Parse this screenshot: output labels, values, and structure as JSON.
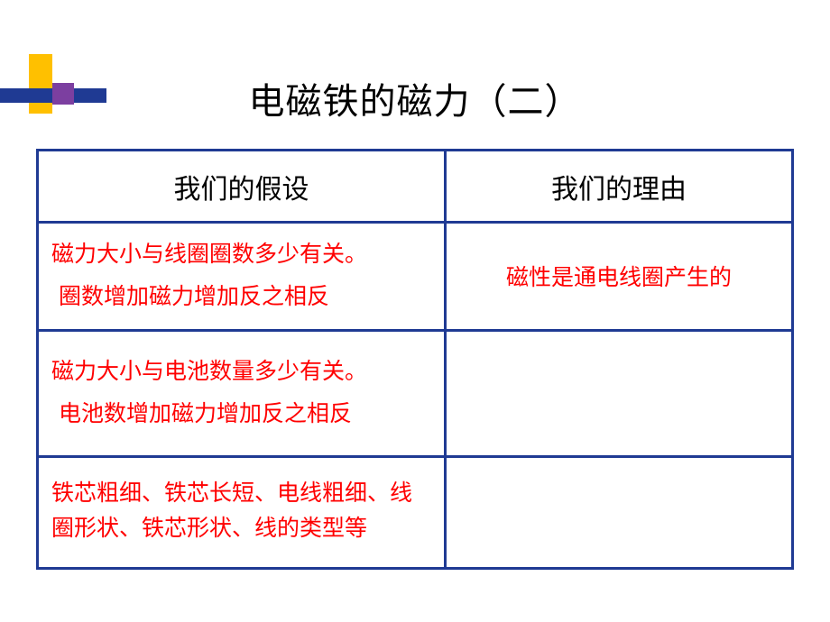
{
  "title": "电磁铁的磁力（二）",
  "colors": {
    "border": "#1f3a93",
    "text_red": "#ff0000",
    "deco_yellow": "#ffc000",
    "deco_blue": "#1f3a93",
    "deco_purple": "#7c3fa0"
  },
  "table": {
    "headers": {
      "hypothesis": "我们的假设",
      "reason": "我们的理由"
    },
    "rows": [
      {
        "hypothesis_line1": "磁力大小与线圈圈数多少有关。",
        "hypothesis_line2": "圈数增加磁力增加反之相反",
        "reason": "磁性是通电线圈产生的"
      },
      {
        "hypothesis_line1": "磁力大小与电池数量多少有关。",
        "hypothesis_line2": "电池数增加磁力增加反之相反",
        "reason": ""
      },
      {
        "hypothesis_line1": "铁芯粗细、铁芯长短、电线粗细、线圈形状、铁芯形状、线的类型等",
        "hypothesis_line2": "",
        "reason": ""
      }
    ]
  }
}
